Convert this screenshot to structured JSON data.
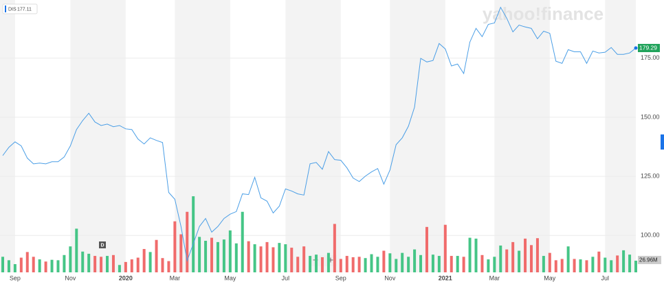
{
  "chart_data": {
    "type": "line",
    "title": "yahoo!finance",
    "legend_label": "DIS",
    "legend_value": 177.11,
    "marker_text": "D",
    "zoom_out": "−",
    "zoom_in": "+",
    "categories": [
      null,
      null,
      "Sep",
      null,
      null,
      null,
      null,
      null,
      null,
      null,
      null,
      "Nov",
      null,
      null,
      null,
      null,
      null,
      null,
      null,
      null,
      "2020",
      null,
      null,
      null,
      null,
      null,
      null,
      null,
      "Mar",
      null,
      null,
      null,
      null,
      null,
      null,
      null,
      null,
      "May",
      null,
      null,
      null,
      null,
      null,
      null,
      null,
      null,
      "Jul",
      null,
      null,
      null,
      null,
      null,
      null,
      null,
      null,
      "Sep",
      null,
      null,
      null,
      null,
      null,
      null,
      null,
      "Nov",
      null,
      null,
      null,
      null,
      null,
      null,
      null,
      null,
      "2021",
      null,
      null,
      null,
      null,
      null,
      null,
      null,
      "Mar",
      null,
      null,
      null,
      null,
      null,
      null,
      null,
      null,
      "May",
      null,
      null,
      null,
      null,
      null,
      null,
      null,
      null,
      "Jul",
      null,
      null,
      null,
      null,
      null
    ],
    "series": [
      {
        "name": "DIS",
        "color": "#4a9ee6",
        "values": [
          133.8,
          137.3,
          139.6,
          137.9,
          132.7,
          130.3,
          130.6,
          130.3,
          131.2,
          131.2,
          133.2,
          137.9,
          144.8,
          148.6,
          151.7,
          148.0,
          146.5,
          147.1,
          146.0,
          146.5,
          145.1,
          144.8,
          140.8,
          138.7,
          141.3,
          140.2,
          139.3,
          118.2,
          115.3,
          103.8,
          89.3,
          96.5,
          103.8,
          107.2,
          101.4,
          103.8,
          107.2,
          109.0,
          110.1,
          117.6,
          117.3,
          124.6,
          115.9,
          114.5,
          109.5,
          112.4,
          119.7,
          118.8,
          117.6,
          117.1,
          130.3,
          130.9,
          128.0,
          135.5,
          132.1,
          131.8,
          128.6,
          124.3,
          122.8,
          125.1,
          126.9,
          128.3,
          121.7,
          127.7,
          138.4,
          141.3,
          146.2,
          154.3,
          174.9,
          173.4,
          174.0,
          181.2,
          178.9,
          171.7,
          172.5,
          168.5,
          181.8,
          187.6,
          184.1,
          189.3,
          189.9,
          196.5,
          191.9,
          186.1,
          189.0,
          188.2,
          187.6,
          183.2,
          186.4,
          185.5,
          173.7,
          172.8,
          178.6,
          177.7,
          177.7,
          172.8,
          178.0,
          177.2,
          177.5,
          179.5,
          176.6,
          176.6,
          177.2,
          179.29
        ]
      }
    ],
    "volume": {
      "up_color": "#45c586",
      "down_color": "#f06b6b",
      "last_label": "26.96M",
      "values": [
        36,
        28,
        19,
        34,
        47,
        36,
        30,
        25,
        29,
        28,
        40,
        60,
        101,
        48,
        43,
        38,
        36,
        38,
        40,
        17,
        24,
        30,
        34,
        54,
        47,
        75,
        33,
        26,
        118,
        88,
        140,
        176,
        82,
        73,
        80,
        70,
        76,
        97,
        67,
        140,
        72,
        65,
        60,
        70,
        58,
        68,
        65,
        57,
        36,
        60,
        38,
        41,
        35,
        45,
        112,
        31,
        38,
        35,
        36,
        33,
        42,
        36,
        50,
        44,
        31,
        45,
        36,
        53,
        40,
        105,
        41,
        38,
        110,
        38,
        38,
        36,
        80,
        78,
        40,
        30,
        36,
        62,
        53,
        70,
        50,
        78,
        63,
        79,
        38,
        45,
        28,
        31,
        60,
        31,
        30,
        28,
        36,
        48,
        34,
        28,
        39,
        51,
        41,
        26.96
      ]
    },
    "ylim": [
      84.4,
      199.6
    ],
    "y2lim": [
      0,
      630
    ],
    "yticks": [
      {
        "value": 100,
        "label": "100.00"
      },
      {
        "value": 125,
        "label": "125.00"
      },
      {
        "value": 150,
        "label": "150.00"
      },
      {
        "value": 175,
        "label": "175.00"
      }
    ],
    "last_color": "#21a35b",
    "grid": true
  }
}
